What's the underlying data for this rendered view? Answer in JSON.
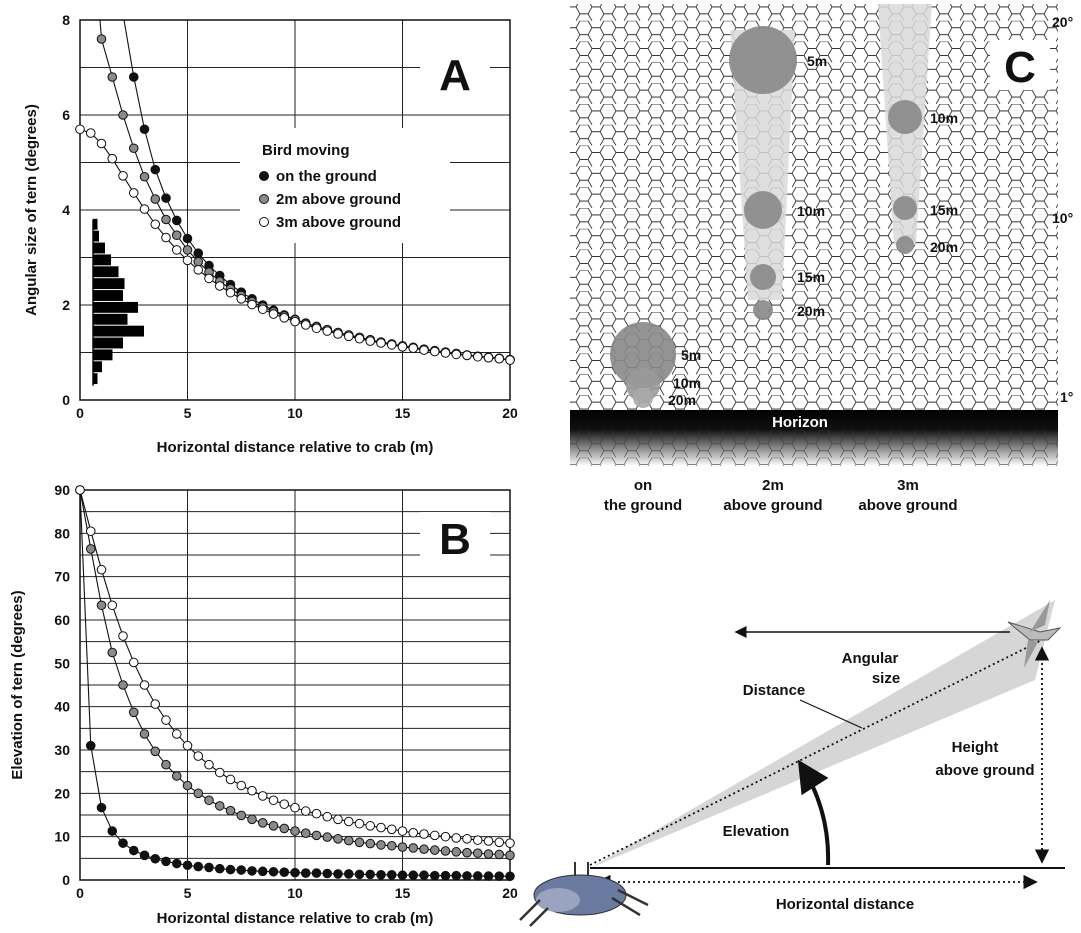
{
  "colors": {
    "ground": "#111111",
    "two_m": "#8a8a8a",
    "three_m": "#ffffff",
    "hist": "#000000",
    "blob": "#888888",
    "beam": "#d9d9d9"
  },
  "chart_data": [
    {
      "id": "A",
      "type": "line",
      "panel_label": "A",
      "xlabel": "Horizontal distance relative to crab (m)",
      "ylabel": "Angular size of tern (degrees)",
      "xlim": [
        0,
        20
      ],
      "ylim": [
        0,
        8
      ],
      "x_ticks": [
        "0",
        "5",
        "10",
        "15",
        "20"
      ],
      "y_ticks": [
        "0",
        "2",
        "4",
        "6",
        "8"
      ],
      "grid": true,
      "legend": {
        "title": "Bird moving",
        "placement": "center",
        "entries": [
          "on the ground",
          "2m above ground",
          "3m above ground"
        ]
      },
      "series": [
        {
          "name": "on the ground",
          "x": [
            2.5,
            3.0,
            3.5,
            4.0,
            4.5,
            5.0,
            5.5,
            6.0,
            6.5,
            7.0,
            7.5,
            8.0,
            8.5,
            9.0,
            9.5,
            10.0,
            10.5,
            11.0,
            11.5,
            12.0,
            12.5,
            13.0,
            13.5,
            14.0,
            14.5,
            15.0,
            15.5,
            16.0,
            16.5,
            17.0,
            17.5,
            18.0,
            18.5,
            19.0,
            19.5,
            20.0
          ],
          "y": [
            6.8,
            5.7,
            4.85,
            4.25,
            3.78,
            3.4,
            3.09,
            2.83,
            2.62,
            2.43,
            2.27,
            2.13,
            2.0,
            1.89,
            1.79,
            1.7,
            1.62,
            1.55,
            1.48,
            1.42,
            1.36,
            1.31,
            1.26,
            1.21,
            1.17,
            1.13,
            1.1,
            1.06,
            1.03,
            1.0,
            0.97,
            0.94,
            0.92,
            0.89,
            0.87,
            0.85
          ]
        },
        {
          "name": "2m above ground",
          "x": [
            1.0,
            1.5,
            2.0,
            2.5,
            3.0,
            3.5,
            4.0,
            4.5,
            5.0,
            5.5,
            6.0,
            6.5,
            7.0,
            7.5,
            8.0,
            8.5,
            9.0,
            9.5,
            10.0,
            10.5,
            11.0,
            11.5,
            12.0,
            12.5,
            13.0,
            13.5,
            14.0,
            14.5,
            15.0,
            15.5,
            16.0,
            16.5,
            17.0,
            17.5,
            18.0,
            18.5,
            19.0,
            19.5,
            20.0
          ],
          "y": [
            7.6,
            6.8,
            6.0,
            5.3,
            4.7,
            4.23,
            3.8,
            3.47,
            3.16,
            2.91,
            2.69,
            2.5,
            2.34,
            2.2,
            2.07,
            1.96,
            1.86,
            1.77,
            1.69,
            1.61,
            1.54,
            1.48,
            1.42,
            1.37,
            1.32,
            1.27,
            1.22,
            1.18,
            1.14,
            1.11,
            1.07,
            1.04,
            1.01,
            0.98,
            0.95,
            0.92,
            0.9,
            0.88,
            0.85
          ]
        },
        {
          "name": "3m above ground",
          "x": [
            0.0,
            0.5,
            1.0,
            1.5,
            2.0,
            2.5,
            3.0,
            3.5,
            4.0,
            4.5,
            5.0,
            5.5,
            6.0,
            6.5,
            7.0,
            7.5,
            8.0,
            8.5,
            9.0,
            9.5,
            10.0,
            10.5,
            11.0,
            11.5,
            12.0,
            12.5,
            13.0,
            13.5,
            14.0,
            14.5,
            15.0,
            15.5,
            16.0,
            16.5,
            17.0,
            17.5,
            18.0,
            18.5,
            19.0,
            19.5,
            20.0
          ],
          "y": [
            5.7,
            5.62,
            5.4,
            5.08,
            4.72,
            4.36,
            4.02,
            3.7,
            3.42,
            3.16,
            2.94,
            2.74,
            2.56,
            2.4,
            2.26,
            2.13,
            2.01,
            1.91,
            1.81,
            1.73,
            1.65,
            1.58,
            1.51,
            1.45,
            1.39,
            1.34,
            1.29,
            1.24,
            1.2,
            1.16,
            1.12,
            1.09,
            1.05,
            1.02,
            0.99,
            0.96,
            0.94,
            0.91,
            0.89,
            0.87,
            0.84
          ]
        }
      ],
      "inset_histogram": {
        "type": "bar",
        "orientation": "horizontal",
        "bin_centers": [
          0.45,
          0.7,
          0.95,
          1.2,
          1.45,
          1.7,
          1.95,
          2.2,
          2.45,
          2.7,
          2.95,
          3.2,
          3.45,
          3.7
        ],
        "values": [
          0.3,
          0.6,
          1.3,
          2.0,
          3.4,
          2.3,
          3.0,
          2.0,
          2.1,
          1.7,
          1.2,
          0.8,
          0.4,
          0.3
        ]
      }
    },
    {
      "id": "B",
      "type": "line",
      "panel_label": "B",
      "xlabel": "Horizontal distance relative to crab (m)",
      "ylabel": "Elevation of tern (degrees)",
      "xlim": [
        0,
        20
      ],
      "ylim": [
        0,
        90
      ],
      "x_ticks": [
        "0",
        "5",
        "10",
        "15",
        "20"
      ],
      "y_ticks": [
        "0",
        "10",
        "20",
        "30",
        "40",
        "50",
        "60",
        "70",
        "80",
        "90"
      ],
      "grid": true,
      "series": [
        {
          "name": "on the ground",
          "x": [
            0.0,
            0.5,
            1.0,
            1.5,
            2.0,
            2.5,
            3.0,
            3.5,
            4.0,
            4.5,
            5.0,
            5.5,
            6.0,
            6.5,
            7.0,
            7.5,
            8.0,
            8.5,
            9.0,
            9.5,
            10.0,
            10.5,
            11.0,
            11.5,
            12.0,
            12.5,
            13.0,
            13.5,
            14.0,
            14.5,
            15.0,
            15.5,
            16.0,
            16.5,
            17.0,
            17.5,
            18.0,
            18.5,
            19.0,
            19.5,
            20.0
          ],
          "y": [
            90.0,
            31.0,
            16.7,
            11.3,
            8.5,
            6.8,
            5.7,
            4.9,
            4.3,
            3.8,
            3.4,
            3.1,
            2.9,
            2.6,
            2.4,
            2.3,
            2.1,
            2.0,
            1.9,
            1.8,
            1.7,
            1.6,
            1.6,
            1.5,
            1.4,
            1.4,
            1.3,
            1.3,
            1.2,
            1.2,
            1.1,
            1.1,
            1.1,
            1.0,
            1.0,
            1.0,
            0.95,
            0.93,
            0.9,
            0.88,
            0.86
          ]
        },
        {
          "name": "2m above ground",
          "x": [
            0.0,
            0.5,
            1.0,
            1.5,
            2.0,
            2.5,
            3.0,
            3.5,
            4.0,
            4.5,
            5.0,
            5.5,
            6.0,
            6.5,
            7.0,
            7.5,
            8.0,
            8.5,
            9.0,
            9.5,
            10.0,
            10.5,
            11.0,
            11.5,
            12.0,
            12.5,
            13.0,
            13.5,
            14.0,
            14.5,
            15.0,
            15.5,
            16.0,
            16.5,
            17.0,
            17.5,
            18.0,
            18.5,
            19.0,
            19.5,
            20.0
          ],
          "y": [
            90.0,
            76.4,
            63.4,
            52.5,
            45.0,
            38.7,
            33.7,
            29.7,
            26.6,
            24.0,
            21.8,
            20.0,
            18.4,
            17.1,
            16.0,
            14.9,
            14.0,
            13.2,
            12.5,
            11.9,
            11.3,
            10.8,
            10.3,
            9.9,
            9.5,
            9.1,
            8.7,
            8.4,
            8.1,
            7.9,
            7.6,
            7.4,
            7.1,
            6.9,
            6.7,
            6.5,
            6.3,
            6.2,
            6.0,
            5.9,
            5.7
          ]
        },
        {
          "name": "3m above ground",
          "x": [
            0.0,
            0.5,
            1.0,
            1.5,
            2.0,
            2.5,
            3.0,
            3.5,
            4.0,
            4.5,
            5.0,
            5.5,
            6.0,
            6.5,
            7.0,
            7.5,
            8.0,
            8.5,
            9.0,
            9.5,
            10.0,
            10.5,
            11.0,
            11.5,
            12.0,
            12.5,
            13.0,
            13.5,
            14.0,
            14.5,
            15.0,
            15.5,
            16.0,
            16.5,
            17.0,
            17.5,
            18.0,
            18.5,
            19.0,
            19.5,
            20.0
          ],
          "y": [
            90.0,
            80.5,
            71.6,
            63.4,
            56.3,
            50.2,
            45.0,
            40.6,
            36.9,
            33.7,
            31.0,
            28.6,
            26.6,
            24.8,
            23.2,
            21.8,
            20.6,
            19.4,
            18.4,
            17.5,
            16.7,
            15.9,
            15.3,
            14.6,
            14.0,
            13.5,
            13.0,
            12.5,
            12.1,
            11.7,
            11.3,
            10.9,
            10.6,
            10.3,
            10.0,
            9.7,
            9.5,
            9.2,
            9.0,
            8.7,
            8.5
          ]
        }
      ]
    }
  ],
  "panel_c": {
    "panel_label": "C",
    "horizon_label": "Horizon",
    "angle_labels": [
      "20°",
      "10°",
      "1°"
    ],
    "columns": [
      {
        "label_line1": "on",
        "label_line2": "the ground",
        "sizes": [
          "5m",
          "10m",
          "20m"
        ]
      },
      {
        "label_line1": "2m",
        "label_line2": "above ground",
        "sizes": [
          "5m",
          "10m",
          "15m",
          "20m"
        ]
      },
      {
        "label_line1": "3m",
        "label_line2": "above ground",
        "sizes": [
          "10m",
          "15m",
          "20m"
        ]
      }
    ]
  },
  "diagram": {
    "labels": {
      "angular_size_line1": "Angular",
      "angular_size_line2": "size",
      "distance": "Distance",
      "height_line1": "Height",
      "height_line2": "above ground",
      "elevation": "Elevation",
      "horizontal_distance": "Horizontal distance"
    }
  }
}
